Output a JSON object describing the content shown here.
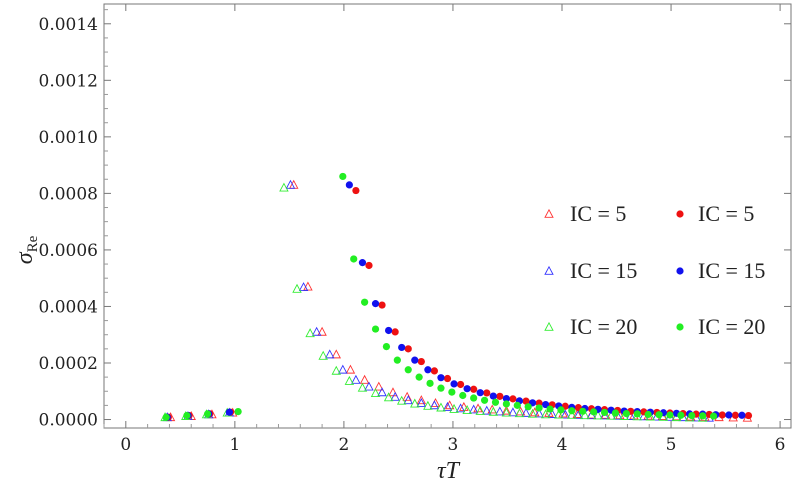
{
  "chart_data": {
    "type": "scatter",
    "title": "",
    "xlabel": "τT",
    "ylabel_main": "σ",
    "ylabel_sub": "Re",
    "xlim": [
      -0.2,
      6.1
    ],
    "ylim": [
      -3e-05,
      0.00147
    ],
    "x_ticks": [
      {
        "value": 0,
        "label": "0"
      },
      {
        "value": 1,
        "label": "1"
      },
      {
        "value": 2,
        "label": "2"
      },
      {
        "value": 3,
        "label": "3"
      },
      {
        "value": 4,
        "label": "4"
      },
      {
        "value": 5,
        "label": "5"
      },
      {
        "value": 6,
        "label": "6"
      }
    ],
    "y_ticks": [
      {
        "value": 0.0,
        "label": "0.0000"
      },
      {
        "value": 0.0002,
        "label": "0.0002"
      },
      {
        "value": 0.0004,
        "label": "0.0004"
      },
      {
        "value": 0.0006,
        "label": "0.0006"
      },
      {
        "value": 0.0008,
        "label": "0.0008"
      },
      {
        "value": 0.001,
        "label": "0.0010"
      },
      {
        "value": 0.0012,
        "label": "0.0012"
      },
      {
        "value": 0.0014,
        "label": "0.0014"
      }
    ],
    "grid": false,
    "legend_position": "right",
    "series": [
      {
        "name": "IC = 5",
        "marker": "triangle-open",
        "color": "#ff3333",
        "x": [
          0.41,
          0.6,
          0.79,
          0.98,
          1.54,
          1.67,
          1.8,
          1.93,
          2.06,
          2.19,
          2.32,
          2.45,
          2.58,
          2.71,
          2.84,
          2.97,
          3.1,
          3.23,
          3.36,
          3.49,
          3.62,
          3.75,
          3.88,
          4.01,
          4.14,
          4.27,
          4.4,
          4.53,
          4.66,
          4.79,
          4.92,
          5.05,
          5.18,
          5.31,
          5.44,
          5.57,
          5.7
        ],
        "y": [
          8e-06,
          1.2e-05,
          1.8e-05,
          2.4e-05,
          0.00083,
          0.00047,
          0.00031,
          0.00023,
          0.000176,
          0.00014,
          0.000116,
          9.6e-05,
          8e-05,
          6.8e-05,
          5.8e-05,
          5e-05,
          4.4e-05,
          3.9e-05,
          3.5e-05,
          3.1e-05,
          2.8e-05,
          2.5e-05,
          2.3e-05,
          2.1e-05,
          1.9e-05,
          1.7e-05,
          1.6e-05,
          1.5e-05,
          1.4e-05,
          1.3e-05,
          1.2e-05,
          1.1e-05,
          1e-05,
          9e-06,
          8e-06,
          7e-06,
          6e-06
        ]
      },
      {
        "name": "IC = 15",
        "marker": "triangle-open",
        "color": "#3333ff",
        "x": [
          0.38,
          0.57,
          0.76,
          0.95,
          1.51,
          1.63,
          1.75,
          1.87,
          1.99,
          2.11,
          2.23,
          2.35,
          2.47,
          2.59,
          2.71,
          2.83,
          2.95,
          3.07,
          3.19,
          3.31,
          3.43,
          3.55,
          3.67,
          3.79,
          3.91,
          4.03,
          4.15,
          4.27,
          4.39,
          4.51,
          4.63,
          4.75,
          4.87,
          4.99,
          5.11,
          5.23,
          5.35
        ],
        "y": [
          8e-06,
          1.2e-05,
          1.8e-05,
          2.4e-05,
          0.00083,
          0.000468,
          0.00031,
          0.00023,
          0.000176,
          0.00014,
          0.000116,
          9.6e-05,
          8e-05,
          6.8e-05,
          5.8e-05,
          5e-05,
          4.4e-05,
          3.9e-05,
          3.5e-05,
          3.1e-05,
          2.8e-05,
          2.5e-05,
          2.3e-05,
          2.1e-05,
          1.9e-05,
          1.7e-05,
          1.6e-05,
          1.5e-05,
          1.4e-05,
          1.3e-05,
          1.2e-05,
          1.1e-05,
          1e-05,
          9e-06,
          8e-06,
          7e-06,
          6e-06
        ]
      },
      {
        "name": "IC = 20",
        "marker": "triangle-open",
        "color": "#33ee33",
        "x": [
          0.36,
          0.55,
          0.74,
          0.93,
          1.45,
          1.57,
          1.69,
          1.81,
          1.93,
          2.05,
          2.17,
          2.29,
          2.41,
          2.53,
          2.65,
          2.77,
          2.89,
          3.01,
          3.13,
          3.25,
          3.37,
          3.49,
          3.61,
          3.73,
          3.85,
          3.97,
          4.09,
          4.21,
          4.33,
          4.45,
          4.57,
          4.69,
          4.81,
          4.93,
          5.05,
          5.17,
          5.29
        ],
        "y": [
          8e-06,
          1.2e-05,
          1.8e-05,
          2.4e-05,
          0.00082,
          0.000462,
          0.000305,
          0.000225,
          0.000172,
          0.000136,
          0.000112,
          9.3e-05,
          7.8e-05,
          6.6e-05,
          5.6e-05,
          4.8e-05,
          4.2e-05,
          3.7e-05,
          3.3e-05,
          3e-05,
          2.7e-05,
          2.4e-05,
          2.2e-05,
          2e-05,
          1.8e-05,
          1.7e-05,
          1.6e-05,
          1.5e-05,
          1.4e-05,
          1.3e-05,
          1.2e-05,
          1.1e-05,
          1e-05,
          9e-06,
          8e-06,
          7e-06,
          6e-06
        ]
      },
      {
        "name": "IC = 5",
        "marker": "circle-filled",
        "color": "#ee1111",
        "x": [
          0.39,
          0.58,
          0.77,
          0.96,
          2.11,
          2.23,
          2.35,
          2.47,
          2.59,
          2.71,
          2.83,
          2.95,
          3.07,
          3.19,
          3.31,
          3.43,
          3.55,
          3.67,
          3.79,
          3.91,
          4.03,
          4.15,
          4.27,
          4.39,
          4.51,
          4.63,
          4.75,
          4.87,
          4.99,
          5.11,
          5.23,
          5.35,
          5.47,
          5.59,
          5.71
        ],
        "y": [
          8e-06,
          1.4e-05,
          2e-05,
          2.6e-05,
          0.00081,
          0.000545,
          0.000405,
          0.00031,
          0.00025,
          0.000205,
          0.000172,
          0.000145,
          0.000124,
          0.000107,
          9.4e-05,
          8.2e-05,
          7.3e-05,
          6.5e-05,
          5.8e-05,
          5.2e-05,
          4.7e-05,
          4.2e-05,
          3.8e-05,
          3.5e-05,
          3.2e-05,
          2.9e-05,
          2.7e-05,
          2.5e-05,
          2.3e-05,
          2.1e-05,
          1.9e-05,
          1.8e-05,
          1.6e-05,
          1.5e-05,
          1.4e-05
        ]
      },
      {
        "name": "IC = 15",
        "marker": "circle-filled",
        "color": "#1111ee",
        "x": [
          0.38,
          0.57,
          0.76,
          0.95,
          2.05,
          2.17,
          2.29,
          2.41,
          2.53,
          2.65,
          2.77,
          2.89,
          3.01,
          3.13,
          3.25,
          3.37,
          3.49,
          3.61,
          3.73,
          3.85,
          3.97,
          4.09,
          4.21,
          4.33,
          4.45,
          4.57,
          4.69,
          4.81,
          4.93,
          5.05,
          5.17,
          5.29,
          5.41,
          5.53,
          5.65
        ],
        "y": [
          8e-06,
          1.4e-05,
          2e-05,
          2.6e-05,
          0.00083,
          0.000555,
          0.00041,
          0.000315,
          0.000255,
          0.00021,
          0.000176,
          0.000148,
          0.000126,
          0.000109,
          9.5e-05,
          8.3e-05,
          7.4e-05,
          6.6e-05,
          5.9e-05,
          5.3e-05,
          4.8e-05,
          4.3e-05,
          3.9e-05,
          3.6e-05,
          3.3e-05,
          3e-05,
          2.8e-05,
          2.6e-05,
          2.4e-05,
          2.2e-05,
          2e-05,
          1.9e-05,
          1.7e-05,
          1.6e-05,
          1.5e-05
        ]
      },
      {
        "name": "IC = 20",
        "marker": "circle-filled",
        "color": "#22ee22",
        "x": [
          0.37,
          0.56,
          0.75,
          1.03,
          1.99,
          2.09,
          2.19,
          2.29,
          2.39,
          2.49,
          2.59,
          2.69,
          2.79,
          2.89,
          2.99,
          3.09,
          3.19,
          3.29,
          3.39,
          3.49,
          3.59,
          3.69,
          3.79,
          3.89,
          3.99,
          4.09,
          4.19,
          4.29,
          4.39,
          4.49,
          4.59,
          4.69,
          4.79,
          4.89,
          4.99,
          5.09,
          5.19,
          5.29,
          5.39
        ],
        "y": [
          8e-06,
          1.4e-05,
          2e-05,
          2.8e-05,
          0.00086,
          0.000568,
          0.000415,
          0.00032,
          0.000258,
          0.00021,
          0.000176,
          0.00015,
          0.000128,
          0.000111,
          9.7e-05,
          8.5e-05,
          7.6e-05,
          6.8e-05,
          6.1e-05,
          5.5e-05,
          5e-05,
          4.5e-05,
          4.1e-05,
          3.7e-05,
          3.4e-05,
          3.1e-05,
          2.9e-05,
          2.7e-05,
          2.5e-05,
          2.3e-05,
          2.1e-05,
          2e-05,
          1.8e-05,
          1.7e-05,
          1.6e-05,
          1.5e-05,
          1.4e-05,
          1.3e-05,
          1.2e-05
        ]
      }
    ]
  }
}
